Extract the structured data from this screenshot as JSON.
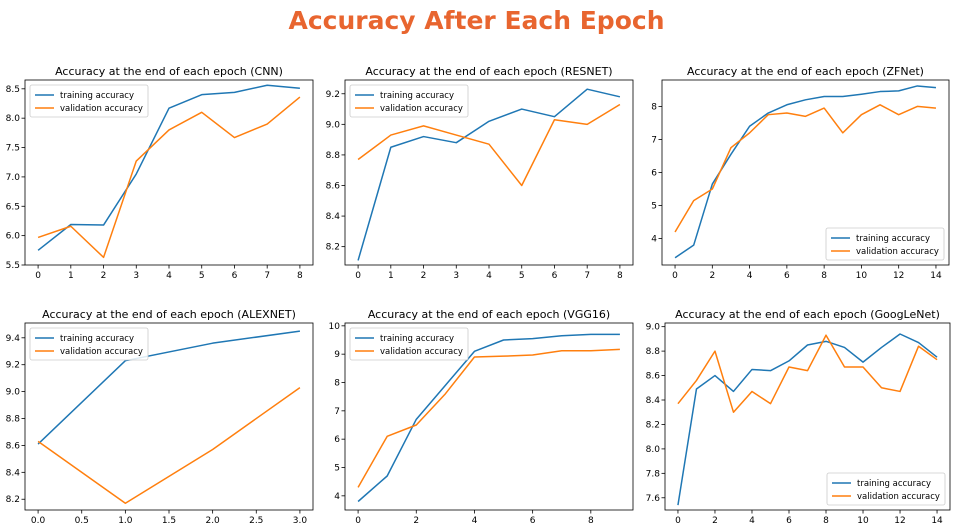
{
  "page": {
    "title": "Accuracy After Each Epoch",
    "title_color": "#e8652f"
  },
  "colors": {
    "training": "#1f77b4",
    "validation": "#ff7f0e"
  },
  "chart_data": [
    {
      "id": "cnn",
      "type": "line",
      "title": "Accuracy at the end of each epoch (CNN)",
      "x": [
        0,
        1,
        2,
        3,
        4,
        5,
        6,
        7,
        8
      ],
      "xlim": [
        -0.4,
        8.4
      ],
      "xticks": [
        0,
        1,
        2,
        3,
        4,
        5,
        6,
        7,
        8
      ],
      "xtick_labels": [
        "0",
        "1",
        "2",
        "3",
        "4",
        "5",
        "6",
        "7",
        "8"
      ],
      "ylim": [
        5.5,
        8.65
      ],
      "yticks": [
        5.5,
        6.0,
        6.5,
        7.0,
        7.5,
        8.0,
        8.5
      ],
      "ytick_labels": [
        "5.5",
        "6.0",
        "6.5",
        "7.0",
        "7.5",
        "8.0",
        "8.5"
      ],
      "legend_position": "top-left",
      "series": [
        {
          "name": "training accuracy",
          "values": [
            5.75,
            6.19,
            6.18,
            7.05,
            8.17,
            8.4,
            8.44,
            8.56,
            8.51
          ]
        },
        {
          "name": "validation accuracy",
          "values": [
            5.97,
            6.16,
            5.63,
            7.27,
            7.8,
            8.1,
            7.67,
            7.9,
            8.36
          ]
        }
      ]
    },
    {
      "id": "resnet",
      "type": "line",
      "title": "Accuracy at the end of each epoch (RESNET)",
      "x": [
        0,
        1,
        2,
        3,
        4,
        5,
        6,
        7,
        8
      ],
      "xlim": [
        -0.4,
        8.4
      ],
      "xticks": [
        0,
        1,
        2,
        3,
        4,
        5,
        6,
        7,
        8
      ],
      "xtick_labels": [
        "0",
        "1",
        "2",
        "3",
        "4",
        "5",
        "6",
        "7",
        "8"
      ],
      "ylim": [
        8.08,
        9.29
      ],
      "yticks": [
        8.2,
        8.4,
        8.6,
        8.8,
        9.0,
        9.2
      ],
      "ytick_labels": [
        "8.2",
        "8.4",
        "8.6",
        "8.8",
        "9.0",
        "9.2"
      ],
      "legend_position": "top-left",
      "series": [
        {
          "name": "training accuracy",
          "values": [
            8.11,
            8.85,
            8.92,
            8.88,
            9.02,
            9.1,
            9.05,
            9.23,
            9.18
          ]
        },
        {
          "name": "validation accuracy",
          "values": [
            8.77,
            8.93,
            8.99,
            8.93,
            8.87,
            8.6,
            9.03,
            9.0,
            9.13
          ]
        }
      ]
    },
    {
      "id": "zfnet",
      "type": "line",
      "title": "Accuracy at the end of each epoch (ZFNet)",
      "x": [
        0,
        1,
        2,
        3,
        4,
        5,
        6,
        7,
        8,
        9,
        10,
        11,
        12,
        13,
        14
      ],
      "xlim": [
        -0.7,
        14.7
      ],
      "xticks": [
        0,
        2,
        4,
        6,
        8,
        10,
        12,
        14
      ],
      "xtick_labels": [
        "0",
        "2",
        "4",
        "6",
        "8",
        "10",
        "12",
        "14"
      ],
      "ylim": [
        3.2,
        8.8
      ],
      "yticks": [
        4,
        5,
        6,
        7,
        8
      ],
      "ytick_labels": [
        "4",
        "5",
        "6",
        "7",
        "8"
      ],
      "legend_position": "bottom-right",
      "series": [
        {
          "name": "training accuracy",
          "values": [
            3.42,
            3.8,
            5.65,
            6.55,
            7.4,
            7.8,
            8.05,
            8.2,
            8.3,
            8.3,
            8.37,
            8.45,
            8.47,
            8.62,
            8.57
          ]
        },
        {
          "name": "validation accuracy",
          "values": [
            4.2,
            5.15,
            5.5,
            6.75,
            7.2,
            7.75,
            7.8,
            7.7,
            7.95,
            7.2,
            7.75,
            8.05,
            7.75,
            8.0,
            7.95
          ]
        }
      ]
    },
    {
      "id": "alexnet",
      "type": "line",
      "title": "Accuracy at the end of each epoch (ALEXNET)",
      "x": [
        0,
        1,
        2,
        3
      ],
      "xlim": [
        -0.15,
        3.15
      ],
      "xticks": [
        0,
        0.5,
        1,
        1.5,
        2,
        2.5,
        3
      ],
      "xtick_labels": [
        "0.0",
        "0.5",
        "1.0",
        "1.5",
        "2.0",
        "2.5",
        "3.0"
      ],
      "ylim": [
        8.12,
        9.51
      ],
      "yticks": [
        8.2,
        8.4,
        8.6,
        8.8,
        9.0,
        9.2,
        9.4
      ],
      "ytick_labels": [
        "8.2",
        "8.4",
        "8.6",
        "8.8",
        "9.0",
        "9.2",
        "9.4"
      ],
      "legend_position": "top-left",
      "series": [
        {
          "name": "training accuracy",
          "values": [
            8.61,
            9.23,
            9.36,
            9.45
          ]
        },
        {
          "name": "validation accuracy",
          "values": [
            8.63,
            8.17,
            8.57,
            9.03
          ]
        }
      ]
    },
    {
      "id": "vgg16",
      "type": "line",
      "title": "Accuracy at the end of each epoch (VGG16)",
      "x": [
        0,
        1,
        2,
        3,
        4,
        5,
        6,
        7,
        8,
        9
      ],
      "xlim": [
        -0.45,
        9.45
      ],
      "xticks": [
        0,
        2,
        4,
        6,
        8
      ],
      "xtick_labels": [
        "0",
        "2",
        "4",
        "6",
        "8"
      ],
      "ylim": [
        3.5,
        10.1
      ],
      "yticks": [
        4,
        5,
        6,
        7,
        8,
        9,
        10
      ],
      "ytick_labels": [
        "4",
        "5",
        "6",
        "7",
        "8",
        "9",
        "10"
      ],
      "legend_position": "top-left",
      "series": [
        {
          "name": "training accuracy",
          "values": [
            3.8,
            4.7,
            6.7,
            7.9,
            9.1,
            9.5,
            9.55,
            9.65,
            9.7,
            9.7
          ]
        },
        {
          "name": "validation accuracy",
          "values": [
            4.3,
            6.1,
            6.5,
            7.6,
            8.9,
            8.93,
            8.97,
            9.12,
            9.12,
            9.17
          ]
        }
      ]
    },
    {
      "id": "googlenet",
      "type": "line",
      "title": "Accuracy at the end of each epoch (GoogLeNet)",
      "x": [
        0,
        1,
        2,
        3,
        4,
        5,
        6,
        7,
        8,
        9,
        10,
        11,
        12,
        13,
        14
      ],
      "xlim": [
        -0.7,
        14.7
      ],
      "xticks": [
        0,
        2,
        4,
        6,
        8,
        10,
        12,
        14
      ],
      "xtick_labels": [
        "0",
        "2",
        "4",
        "6",
        "8",
        "10",
        "12",
        "14"
      ],
      "ylim": [
        7.5,
        9.03
      ],
      "yticks": [
        7.6,
        7.8,
        8.0,
        8.2,
        8.4,
        8.6,
        8.8,
        9.0
      ],
      "ytick_labels": [
        "7.6",
        "7.8",
        "8.0",
        "8.2",
        "8.4",
        "8.6",
        "8.8",
        "9.0"
      ],
      "legend_position": "bottom-right",
      "series": [
        {
          "name": "training accuracy",
          "values": [
            7.54,
            8.49,
            8.6,
            8.47,
            8.65,
            8.64,
            8.72,
            8.85,
            8.88,
            8.83,
            8.71,
            8.83,
            8.94,
            8.87,
            8.75
          ]
        },
        {
          "name": "validation accuracy",
          "values": [
            8.37,
            8.56,
            8.8,
            8.3,
            8.47,
            8.37,
            8.67,
            8.64,
            8.93,
            8.67,
            8.67,
            8.5,
            8.47,
            8.84,
            8.73
          ]
        }
      ]
    }
  ]
}
